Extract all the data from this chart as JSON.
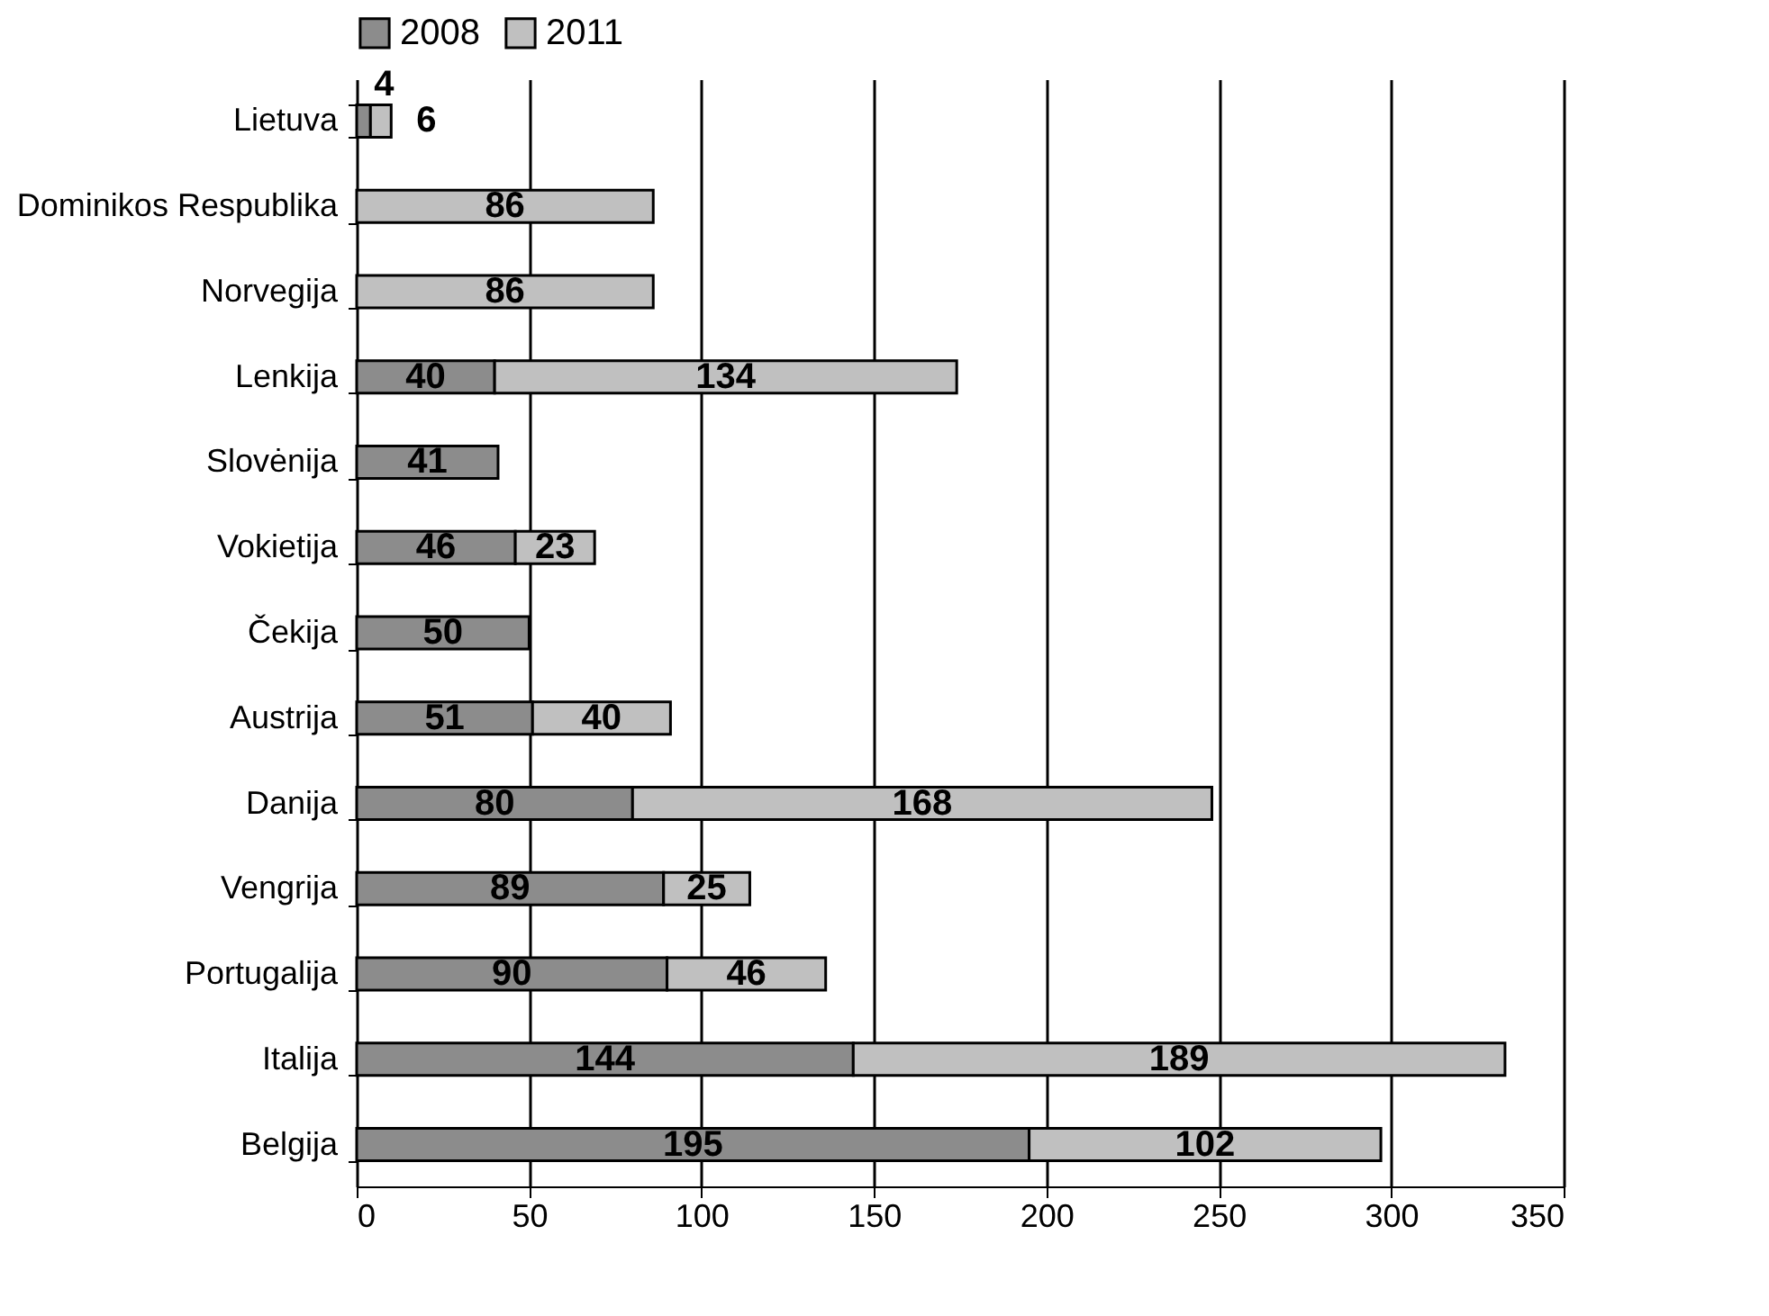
{
  "chart_data": {
    "type": "bar",
    "orientation": "horizontal",
    "stacked": true,
    "categories": [
      "Lietuva",
      "Dominikos Respublika",
      "Norvegija",
      "Lenkija",
      "Slovėnija",
      "Vokietija",
      "Čekija",
      "Austrija",
      "Danija",
      "Vengrija",
      "Portugalija",
      "Italija",
      "Belgija"
    ],
    "series": [
      {
        "name": "2008",
        "color": "#8c8c8c",
        "values": [
          4,
          null,
          null,
          40,
          41,
          46,
          50,
          51,
          80,
          89,
          90,
          144,
          195
        ]
      },
      {
        "name": "2011",
        "color": "#c0c0c0",
        "values": [
          6,
          86,
          86,
          134,
          null,
          23,
          null,
          40,
          168,
          25,
          46,
          189,
          102
        ]
      }
    ],
    "xlim": [
      0,
      350
    ],
    "xticks": [
      0,
      50,
      100,
      150,
      200,
      250,
      300,
      350
    ],
    "grid": "x",
    "legend": "top",
    "data_labels": true
  }
}
